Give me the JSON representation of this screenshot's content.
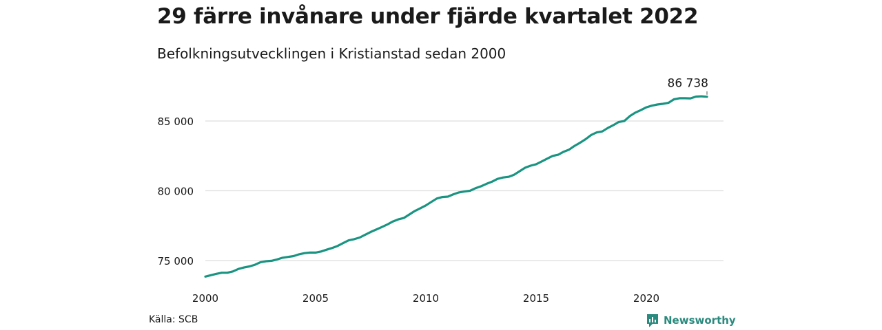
{
  "header": {
    "title": "29 färre invånare under fjärde kvartalet 2022",
    "subtitle": "Befolkningsutvecklingen i Kristianstad sedan 2000"
  },
  "footer": {
    "source": "Källa: SCB",
    "brand": "Newsworthy",
    "brand_icon": "newsworthy-logo-icon"
  },
  "colors": {
    "line": "#1a9482",
    "grid": "#dddddd",
    "brand": "#2a8a7e"
  },
  "chart_data": {
    "type": "line",
    "title": "29 färre invånare under fjärde kvartalet 2022",
    "subtitle": "Befolkningsutvecklingen i Kristianstad sedan 2000",
    "xlabel": "",
    "ylabel": "",
    "xlim": [
      2000,
      2023
    ],
    "ylim": [
      73000,
      88000
    ],
    "x_ticks": [
      2000,
      2005,
      2010,
      2015,
      2020
    ],
    "x_tick_labels": [
      "2000",
      "2005",
      "2010",
      "2015",
      "2020"
    ],
    "y_ticks": [
      75000,
      80000,
      85000
    ],
    "y_tick_labels": [
      "75 000",
      "80 000",
      "85 000"
    ],
    "grid": "horizontal",
    "last_value_label": "86 738",
    "series": [
      {
        "x": [
          2000.0,
          2000.25,
          2000.5,
          2000.75,
          2001.0,
          2001.25,
          2001.5,
          2001.75,
          2002.0,
          2002.25,
          2002.5,
          2002.75,
          2003.0,
          2003.25,
          2003.5,
          2003.75,
          2004.0,
          2004.25,
          2004.5,
          2004.75,
          2005.0,
          2005.25,
          2005.5,
          2005.75,
          2006.0,
          2006.25,
          2006.5,
          2006.75,
          2007.0,
          2007.25,
          2007.5,
          2007.75,
          2008.0,
          2008.25,
          2008.5,
          2008.75,
          2009.0,
          2009.25,
          2009.5,
          2009.75,
          2010.0,
          2010.25,
          2010.5,
          2010.75,
          2011.0,
          2011.25,
          2011.5,
          2011.75,
          2012.0,
          2012.25,
          2012.5,
          2012.75,
          2013.0,
          2013.25,
          2013.5,
          2013.75,
          2014.0,
          2014.25,
          2014.5,
          2014.75,
          2015.0,
          2015.25,
          2015.5,
          2015.75,
          2016.0,
          2016.25,
          2016.5,
          2016.75,
          2017.0,
          2017.25,
          2017.5,
          2017.75,
          2018.0,
          2018.25,
          2018.5,
          2018.75,
          2019.0,
          2019.25,
          2019.5,
          2019.75,
          2020.0,
          2020.25,
          2020.5,
          2020.75,
          2021.0,
          2021.25,
          2021.5,
          2021.75,
          2022.0,
          2022.25,
          2022.5,
          2022.75
        ],
        "y": [
          73850,
          73950,
          74050,
          74130,
          74130,
          74220,
          74400,
          74500,
          74580,
          74700,
          74880,
          74950,
          74980,
          75080,
          75200,
          75260,
          75320,
          75450,
          75530,
          75570,
          75570,
          75650,
          75780,
          75900,
          76050,
          76250,
          76450,
          76530,
          76650,
          76850,
          77050,
          77220,
          77400,
          77580,
          77800,
          77950,
          78050,
          78300,
          78550,
          78750,
          78950,
          79200,
          79450,
          79550,
          79580,
          79750,
          79880,
          79950,
          80000,
          80180,
          80320,
          80500,
          80650,
          80850,
          80950,
          81000,
          81150,
          81400,
          81650,
          81800,
          81900,
          82100,
          82300,
          82500,
          82580,
          82800,
          82950,
          83220,
          83450,
          83700,
          84000,
          84180,
          84250,
          84500,
          84700,
          84930,
          85000,
          85350,
          85600,
          85780,
          85980,
          86100,
          86180,
          86230,
          86300,
          86550,
          86630,
          86630,
          86620,
          86750,
          86767,
          86738
        ]
      }
    ]
  }
}
